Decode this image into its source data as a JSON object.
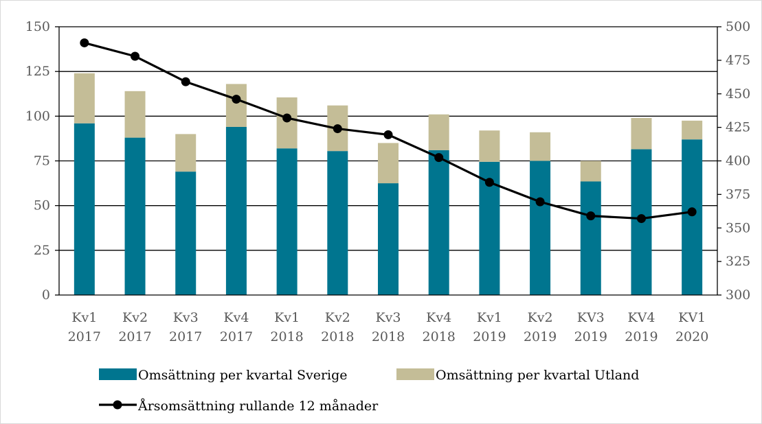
{
  "chart_data": {
    "type": "bar",
    "stacked": true,
    "categories": [
      [
        "Kv1",
        "2017"
      ],
      [
        "Kv2",
        "2017"
      ],
      [
        "Kv3",
        "2017"
      ],
      [
        "Kv4",
        "2017"
      ],
      [
        "Kv1",
        "2018"
      ],
      [
        "Kv2",
        "2018"
      ],
      [
        "Kv3",
        "2018"
      ],
      [
        "Kv4",
        "2018"
      ],
      [
        "Kv1",
        "2019"
      ],
      [
        "Kv2",
        "2019"
      ],
      [
        "KV3",
        "2019"
      ],
      [
        "KV4",
        "2019"
      ],
      [
        "KV1",
        "2020"
      ]
    ],
    "series": [
      {
        "name": "Omsättning per kvartal Sverige",
        "type": "bar",
        "axis": "left",
        "color": "#00758f",
        "values": [
          96,
          88,
          69,
          94,
          82,
          80.5,
          62.5,
          81,
          74.5,
          75,
          63.5,
          81.5,
          87
        ]
      },
      {
        "name": "Omsättning per kvartal Utland",
        "type": "bar",
        "axis": "left",
        "color": "#c4bd97",
        "values": [
          28,
          26,
          21,
          24,
          28.5,
          25.5,
          22.5,
          20,
          17.5,
          16,
          11.5,
          17.5,
          10.5
        ]
      },
      {
        "name": "Årsomsättning rullande 12 månader",
        "type": "line",
        "axis": "right",
        "color": "#000000",
        "values": [
          488,
          478,
          459,
          446,
          432,
          424,
          419.5,
          402.5,
          384,
          369.5,
          359,
          357,
          362
        ]
      }
    ],
    "y_left": {
      "lim": [
        0,
        150
      ],
      "ticks": [
        "0",
        "25",
        "50",
        "75",
        "100",
        "125",
        "150"
      ]
    },
    "y_right": {
      "lim": [
        300,
        500
      ],
      "ticks": [
        "300",
        "325",
        "350",
        "375",
        "400",
        "425",
        "450",
        "475",
        "500"
      ]
    },
    "grid": true,
    "legend_position": "bottom"
  }
}
